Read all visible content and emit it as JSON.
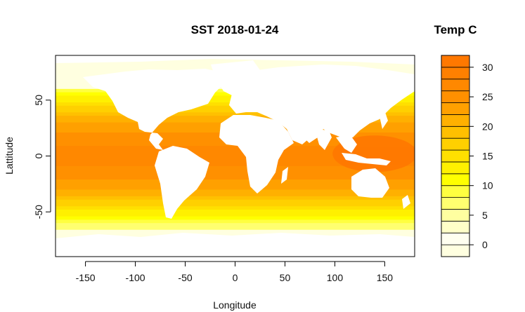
{
  "chart_data": {
    "type": "heatmap",
    "title": "SST 2018-01-24",
    "xlabel": "Longitude",
    "ylabel": "Lattitude",
    "xlim": [
      -180,
      180
    ],
    "ylim": [
      -90,
      90
    ],
    "x_ticks": [
      -150,
      -100,
      -50,
      0,
      50,
      100,
      150
    ],
    "y_ticks": [
      -50,
      0,
      50
    ],
    "colorbar": {
      "title": "Temp C",
      "ticks": [
        0,
        5,
        10,
        15,
        20,
        25,
        30
      ],
      "range": [
        -2,
        32
      ],
      "levels": [
        -2,
        0,
        2,
        4,
        6,
        8,
        10,
        12,
        14,
        16,
        18,
        20,
        22,
        24,
        26,
        28,
        30,
        32
      ],
      "colors": [
        "#ffffe0",
        "#fffff0",
        "#ffffc8",
        "#ffffa0",
        "#ffff70",
        "#ffff40",
        "#ffff00",
        "#fff000",
        "#ffe000",
        "#ffd000",
        "#ffc000",
        "#ffb000",
        "#ffa000",
        "#ff9000",
        "#ff8800",
        "#ff8000",
        "#ff7800"
      ]
    },
    "land_color": "#ffffff"
  }
}
